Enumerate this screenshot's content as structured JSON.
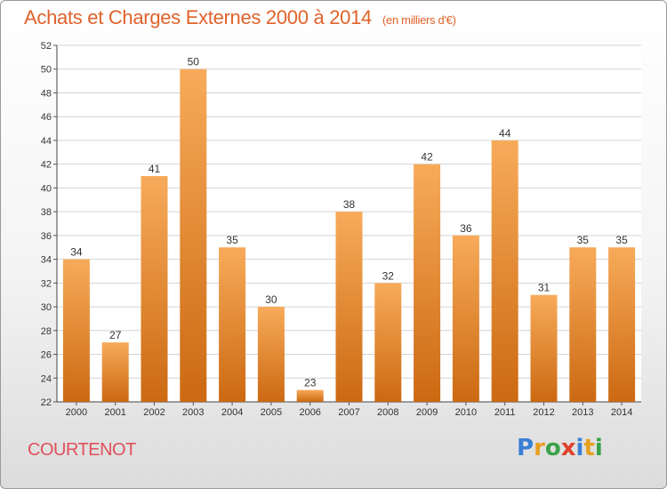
{
  "title": "Achats et Charges Externes 2000 à 2014",
  "unit": "(en milliers d'€)",
  "town": "COURTENOT",
  "logo": {
    "letters": [
      "P",
      "r",
      "o",
      "x",
      "i",
      "t",
      "i"
    ],
    "colors": [
      "#3a7fd5",
      "#e8a020",
      "#3aa24a",
      "#e0402a",
      "#3a7fd5",
      "#e8a020",
      "#3aa24a"
    ]
  },
  "colors": {
    "bar_light": "#f7ab5a",
    "bar_dark": "#cc6912",
    "title": "#e0622a",
    "town": "#e0505c"
  },
  "chart_data": {
    "type": "bar",
    "categories": [
      "2000",
      "2001",
      "2002",
      "2003",
      "2004",
      "2005",
      "2006",
      "2007",
      "2008",
      "2009",
      "2010",
      "2011",
      "2012",
      "2013",
      "2014"
    ],
    "values": [
      34,
      27,
      41,
      50,
      35,
      30,
      23,
      38,
      32,
      42,
      36,
      44,
      31,
      35,
      35
    ],
    "ylim": [
      22,
      52
    ],
    "yticks": [
      22,
      24,
      26,
      28,
      30,
      32,
      34,
      36,
      38,
      40,
      42,
      44,
      46,
      48,
      50,
      52
    ],
    "grid": true,
    "data_labels": true
  }
}
